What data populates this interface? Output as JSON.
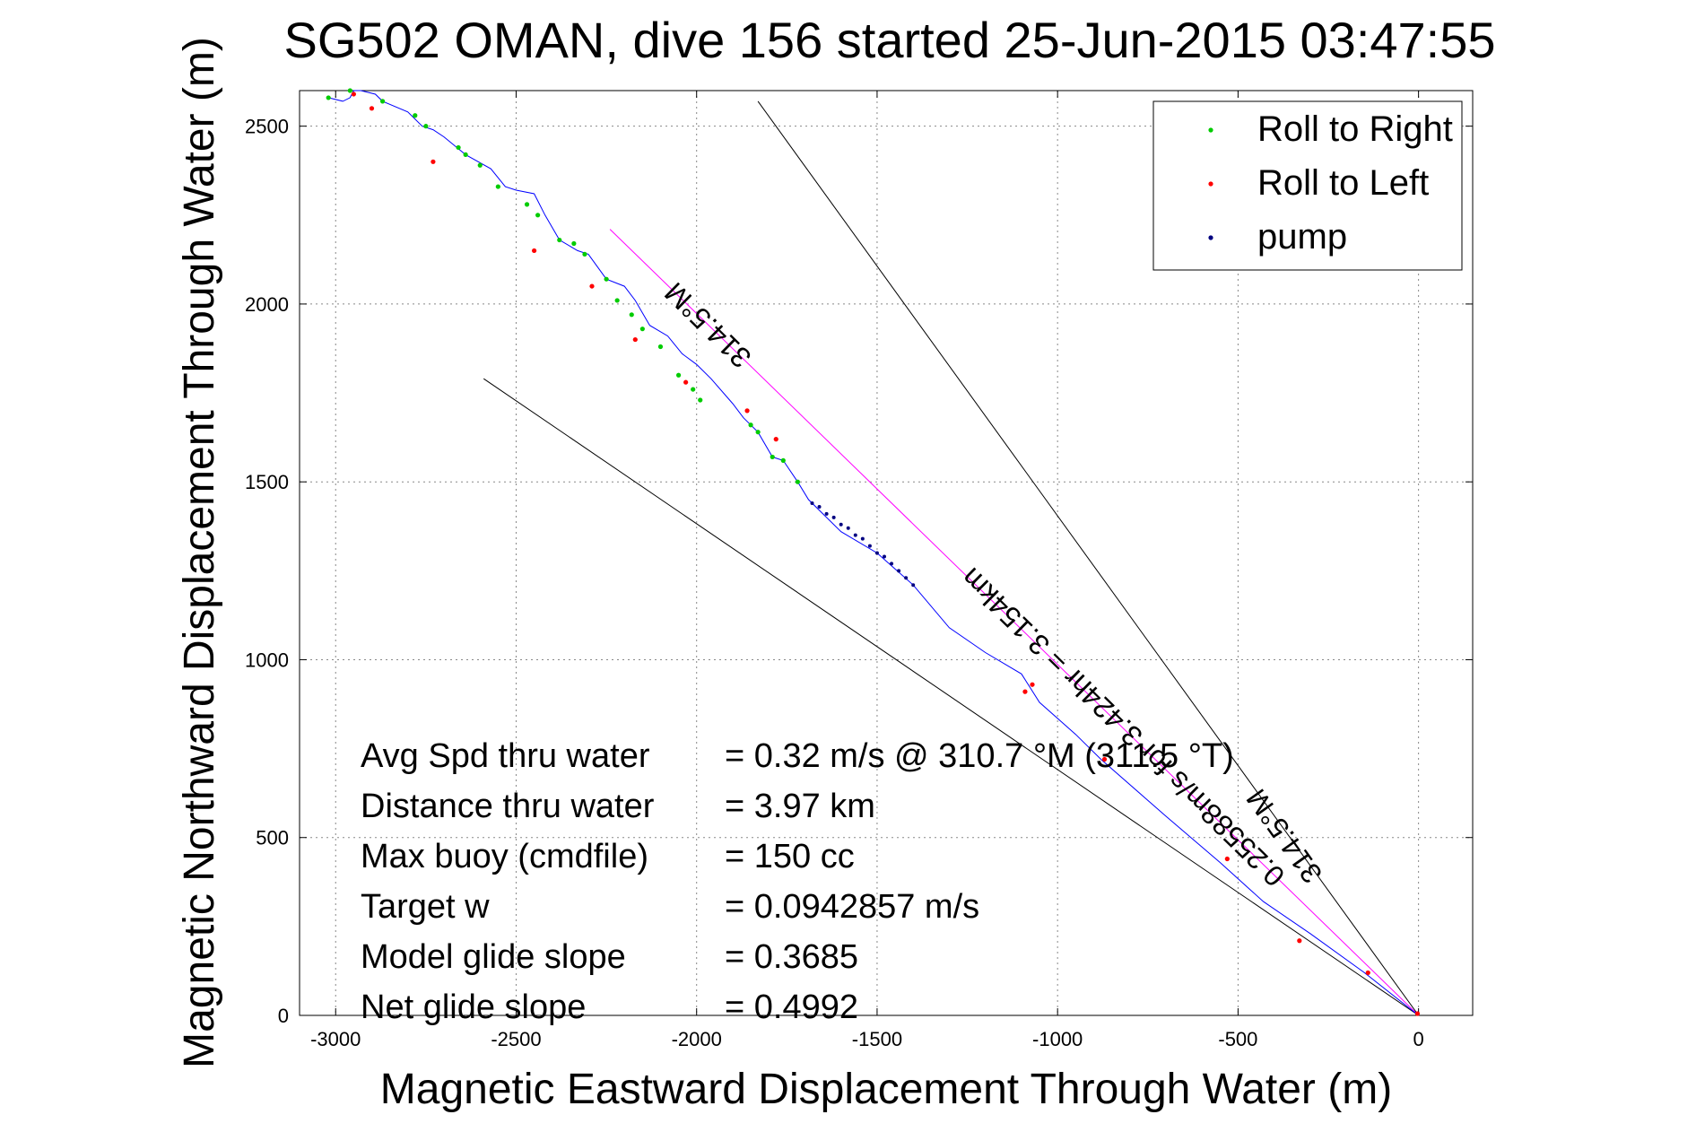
{
  "chart_data": {
    "type": "scatter",
    "title": "SG502 OMAN, dive 156 started 25-Jun-2015 03:47:55",
    "xlabel": "Magnetic Eastward Displacement Through Water (m)",
    "ylabel": "Magnetic Northward Displacement Through Water (m)",
    "xlim": [
      -3100,
      150
    ],
    "ylim": [
      0,
      2600
    ],
    "xticks": [
      -3000,
      -2500,
      -2000,
      -1500,
      -1000,
      -500,
      0
    ],
    "yticks": [
      0,
      500,
      1000,
      1500,
      2000,
      2500
    ],
    "xtick_labels": [
      "-3000",
      "-2500",
      "-2000",
      "-1500",
      "-1000",
      "-500",
      "0"
    ],
    "ytick_labels": [
      "0",
      "500",
      "1000",
      "1500",
      "2000",
      "2500"
    ],
    "grid": true,
    "legend_position": "top-right",
    "legend": [
      {
        "label": "Roll to Right",
        "color": "#00cc00"
      },
      {
        "label": "Roll to Left",
        "color": "#ff0000"
      },
      {
        "label": "pump",
        "color": "#000080"
      }
    ],
    "track": {
      "color": "#0000ff",
      "x": [
        0,
        -150,
        -300,
        -430,
        -550,
        -700,
        -880,
        -950,
        -1050,
        -1100,
        -1200,
        -1300,
        -1400,
        -1500,
        -1600,
        -1690,
        -1720,
        -1760,
        -1790,
        -1830,
        -1870,
        -1900,
        -1960,
        -2000,
        -2040,
        -2080,
        -2130,
        -2170,
        -2200,
        -2250,
        -2300,
        -2330,
        -2380,
        -2420,
        -2450,
        -2500,
        -2530,
        -2570,
        -2640,
        -2700,
        -2730,
        -2760,
        -2800,
        -2870,
        -2890,
        -2930,
        -2950,
        -2960,
        -2980,
        -3020
      ],
      "y": [
        0,
        120,
        230,
        320,
        430,
        560,
        720,
        790,
        880,
        960,
        1020,
        1090,
        1210,
        1300,
        1360,
        1450,
        1500,
        1560,
        1570,
        1640,
        1680,
        1720,
        1790,
        1830,
        1860,
        1910,
        1940,
        2010,
        2050,
        2070,
        2140,
        2150,
        2180,
        2250,
        2310,
        2320,
        2330,
        2380,
        2420,
        2470,
        2490,
        2500,
        2540,
        2570,
        2590,
        2600,
        2600,
        2580,
        2570,
        2580
      ]
    },
    "roll_right_x": [
      -1720,
      -1760,
      -1790,
      -1830,
      -1850,
      -1990,
      -2010,
      -2050,
      -2100,
      -2150,
      -2180,
      -2220,
      -2250,
      -2310,
      -2340,
      -2380,
      -2440,
      -2470,
      -2550,
      -2600,
      -2640,
      -2660,
      -2750,
      -2780,
      -2870,
      -2960,
      -3020
    ],
    "roll_right_y": [
      1500,
      1560,
      1570,
      1640,
      1660,
      1730,
      1760,
      1800,
      1880,
      1930,
      1970,
      2010,
      2070,
      2140,
      2170,
      2180,
      2250,
      2280,
      2330,
      2390,
      2420,
      2440,
      2500,
      2530,
      2570,
      2600,
      2580
    ],
    "roll_left_x": [
      -3,
      -140,
      -330,
      -530,
      -870,
      -1090,
      -1070,
      -1780,
      -1860,
      -2030,
      -2170,
      -2290,
      -2450,
      -2730,
      -2900,
      -2950
    ],
    "roll_left_y": [
      5,
      120,
      210,
      440,
      720,
      910,
      930,
      1620,
      1700,
      1780,
      1900,
      2050,
      2150,
      2400,
      2550,
      2590
    ],
    "pump_x": [
      -1680,
      -1660,
      -1640,
      -1620,
      -1600,
      -1580,
      -1560,
      -1540,
      -1520,
      -1500,
      -1480,
      -1460,
      -1440,
      -1420,
      -1400
    ],
    "pump_y": [
      1440,
      1430,
      1410,
      1400,
      1380,
      1370,
      1350,
      1340,
      1320,
      1300,
      1290,
      1270,
      1250,
      1230,
      1210
    ],
    "lines": [
      {
        "name": "heading",
        "color": "#ff00ff",
        "x": [
          0,
          -2240
        ],
        "y": [
          0,
          2210
        ]
      },
      {
        "name": "upper bound",
        "color": "#000000",
        "x": [
          0,
          -1830
        ],
        "y": [
          0,
          2570
        ]
      },
      {
        "name": "lower bound",
        "color": "#000000",
        "x": [
          0,
          -2590
        ],
        "y": [
          0,
          1790
        ]
      }
    ],
    "rotated_labels": [
      {
        "text": "314.5°M",
        "x": -1950,
        "y": 1960,
        "angle": 224.5
      },
      {
        "text": "0.25588m/s for 3.424hr = 3.154km",
        "x": -800,
        "y": 830,
        "angle": 224.5
      },
      {
        "text": "314.5°M",
        "x": -350,
        "y": 520,
        "angle": 234.5
      }
    ]
  },
  "annotations": [
    {
      "label": "Avg Spd thru water",
      "value": "=  0.32 m/s @ 310.7 °M (311.5 °T)"
    },
    {
      "label": "Distance thru water",
      "value": "=  3.97 km"
    },
    {
      "label": "Max buoy (cmdfile)",
      "value": "= 150 cc"
    },
    {
      "label": "Target w",
      "value": "= 0.0942857 m/s"
    },
    {
      "label": "Model glide slope",
      "value": "= 0.3685"
    },
    {
      "label": "Net glide slope",
      "value": "= 0.4992"
    }
  ]
}
